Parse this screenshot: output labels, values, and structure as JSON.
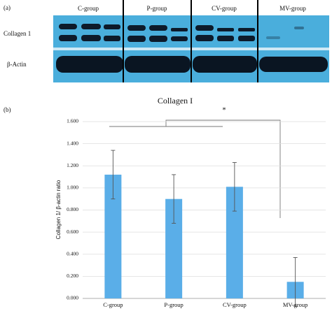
{
  "panel_a": {
    "label": "(a)",
    "groups": [
      "C-group",
      "P-group",
      "CV-group",
      "MV-group"
    ],
    "rows": [
      "Collagen 1",
      "β-Actin"
    ]
  },
  "chart_data": {
    "type": "bar",
    "panel_label": "(b)",
    "title": "Collagen I",
    "y_label": "Collagen 1/ β-actin ratio",
    "categories": [
      "C-group",
      "P-group",
      "CV-group",
      "MV-group"
    ],
    "values": [
      1.12,
      0.9,
      1.01,
      0.15
    ],
    "errors": [
      0.22,
      0.22,
      0.22,
      0.22
    ],
    "color": "#5aaee8",
    "ylim": [
      0,
      1.6
    ],
    "yticks": [
      {
        "value": 0,
        "label": "0.000"
      },
      {
        "value": 0.2,
        "label": "0.200"
      },
      {
        "value": 0.4,
        "label": "0.400"
      },
      {
        "value": 0.6,
        "label": "0.600"
      },
      {
        "value": 0.8,
        "label": "0.800"
      },
      {
        "value": 1.0,
        "label": "1.000"
      },
      {
        "value": 1.2,
        "label": "1.200"
      },
      {
        "value": 1.4,
        "label": "1.400"
      },
      {
        "value": 1.6,
        "label": "1.600"
      }
    ],
    "grid": true,
    "annotation": "*"
  }
}
